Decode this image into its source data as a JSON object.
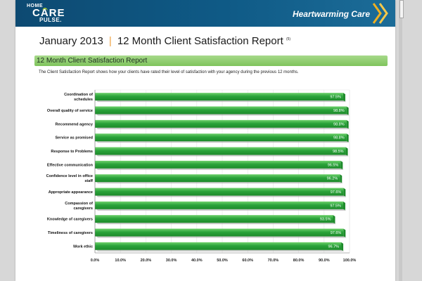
{
  "header": {
    "logo": {
      "line1": "HOME",
      "line2": "CARE",
      "line3": "PULSE."
    },
    "tagline": "Heartwarming Care"
  },
  "title": {
    "date": "January 2013",
    "separator": "|",
    "report": "12 Month Client Satisfaction Report",
    "footnote": "(5)"
  },
  "section": {
    "heading": "12 Month Client Satisfaction Report",
    "description": "The Client Satisfaction Report shows how your clients have rated their level of satisfaction with your agency during the previous 12 months."
  },
  "colors": {
    "bar_dark": "#1d8a2a",
    "bar_light": "#6fd16c",
    "bar_shadow": "#9a9a9a"
  },
  "chart_data": {
    "type": "bar",
    "orientation": "horizontal",
    "categories": [
      "Coordination of schedules",
      "Overall quality of service",
      "Recommend agency",
      "Service as promised",
      "Response to Problems",
      "Effective communication",
      "Confidence level in office staff",
      "Appropriate appearance",
      "Compassion of caregivers",
      "Knowledge of caregivers",
      "Timeliness of caregivers",
      "Work ethic"
    ],
    "category_lines": [
      [
        "Coordination of",
        "schedules"
      ],
      [
        "Overall quality of service"
      ],
      [
        "Recommend agency"
      ],
      [
        "Service as promised"
      ],
      [
        "Response to Problems"
      ],
      [
        "Effective communication"
      ],
      [
        "Confidence level in office",
        "staff"
      ],
      [
        "Appropriate appearance"
      ],
      [
        "Compassion of",
        "caregivers"
      ],
      [
        "Knowledge of caregivers"
      ],
      [
        "Timeliness of caregivers"
      ],
      [
        "Work ethic"
      ]
    ],
    "values": [
      97.5,
      98.8,
      98.8,
      98.8,
      98.5,
      96.5,
      96.2,
      97.6,
      97.5,
      93.5,
      97.6,
      96.7
    ],
    "value_labels": [
      "97.5%",
      "98.8%",
      "98.8%",
      "98.8%",
      "98.5%",
      "96.5%",
      "96.2%",
      "97.6%",
      "97.5%",
      "93.5%",
      "97.6%",
      "96.7%"
    ],
    "xlim": [
      0,
      100
    ],
    "xticks": [
      "0.0%",
      "10.0%",
      "20.0%",
      "30.0%",
      "40.0%",
      "50.0%",
      "60.0%",
      "70.0%",
      "80.0%",
      "90.0%",
      "100.0%"
    ],
    "xtick_values": [
      0,
      10,
      20,
      30,
      40,
      50,
      60,
      70,
      80,
      90,
      100
    ],
    "grid": true,
    "legend": "none"
  }
}
